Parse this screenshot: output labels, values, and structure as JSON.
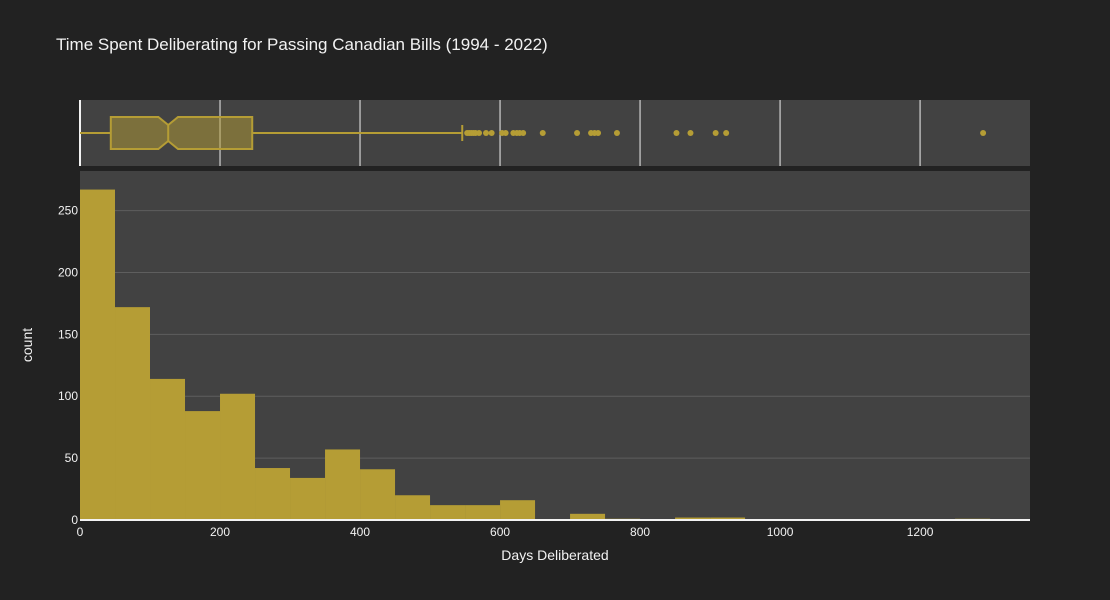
{
  "chart_data": {
    "type": "histogram",
    "title": "Time Spent Deliberating for Passing Canadian Bills (1994 - 2022)",
    "xlabel": "Days Deliberated",
    "ylabel": "count",
    "xlim": [
      0,
      1357
    ],
    "ylim": [
      0,
      282
    ],
    "x_ticks": [
      "0",
      "200",
      "400",
      "600",
      "800",
      "1000",
      "1200"
    ],
    "y_ticks": [
      "0",
      "50",
      "100",
      "150",
      "200",
      "250"
    ],
    "bin_width": 50,
    "bin_starts": [
      0,
      50,
      100,
      150,
      200,
      250,
      300,
      350,
      400,
      450,
      500,
      550,
      600,
      650,
      700,
      750,
      800,
      850,
      900,
      950,
      1000,
      1050,
      1100,
      1150,
      1200,
      1250
    ],
    "counts": [
      267,
      172,
      114,
      88,
      102,
      42,
      34,
      57,
      41,
      20,
      12,
      12,
      16,
      0,
      5,
      1,
      0,
      2,
      2,
      0,
      0,
      0,
      0,
      0,
      0,
      1
    ],
    "color": "#b59d35",
    "box": {
      "q1": 44,
      "median": 126,
      "q3": 246,
      "notch_low": 112,
      "notch_high": 140,
      "lower_fence": 0,
      "upper_fence": 546,
      "outliers": [
        553,
        556,
        559,
        562,
        565,
        570,
        580,
        588,
        603,
        608,
        619,
        624,
        628,
        633,
        661,
        710,
        730,
        735,
        740,
        767,
        852,
        872,
        908,
        923,
        1290
      ]
    },
    "background": "#222222",
    "plot_background": "#424242"
  }
}
